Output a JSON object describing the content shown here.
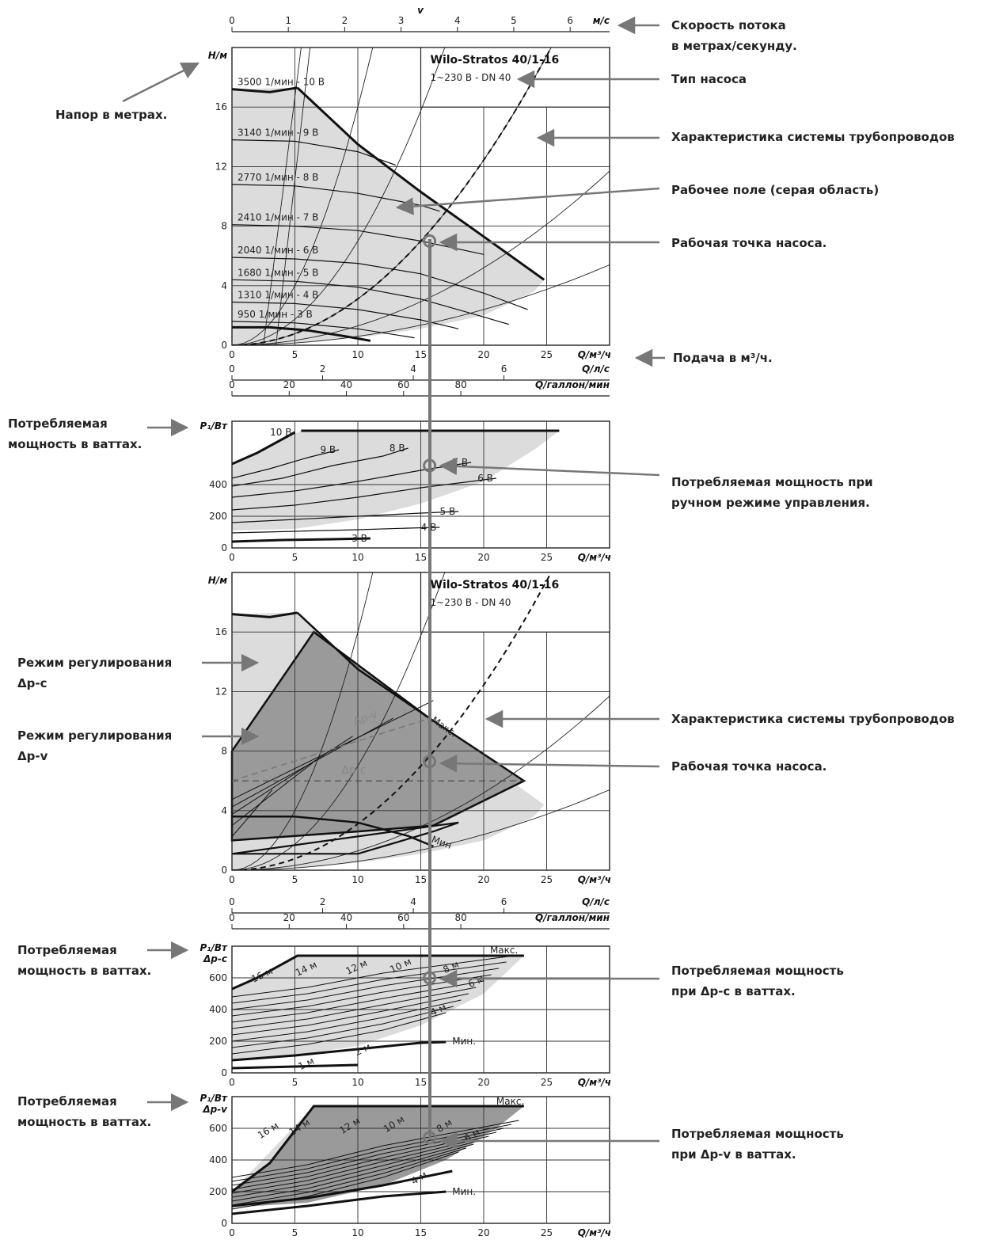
{
  "chart_data": [
    {
      "id": "h1",
      "type": "line",
      "title": "Wilo-Stratos 40/1-16",
      "subtitle": "1~230 В - DN 40",
      "ylabel": "H/м",
      "xlabel": "Q/м³/ч",
      "xlim": [
        0,
        30
      ],
      "ylim": [
        0,
        20
      ],
      "xticks": [
        0,
        5,
        10,
        15,
        20,
        25
      ],
      "yticks": [
        0,
        4,
        8,
        12,
        16
      ],
      "top_axis": {
        "label": "v",
        "unit": "м/с",
        "ticks": [
          "0",
          "1",
          "2",
          "3",
          "4",
          "5",
          "6"
        ],
        "max": 6.7
      },
      "series": [
        {
          "name": "3500 1/мин - 10 В",
          "x": [
            0,
            3,
            5.2
          ],
          "y": [
            17.2,
            17.0,
            17.3
          ]
        },
        {
          "name": "3140 1/мин - 9 В",
          "x": [
            0,
            5,
            10,
            13
          ],
          "y": [
            13.8,
            13.7,
            13.0,
            12.1
          ]
        },
        {
          "name": "2770 1/мин - 8 В",
          "x": [
            0,
            5,
            10,
            15,
            16.5
          ],
          "y": [
            10.8,
            10.7,
            10.2,
            9.4,
            9.0
          ]
        },
        {
          "name": "2410 1/мин - 7 В",
          "x": [
            0,
            5,
            10,
            15,
            20
          ],
          "y": [
            8.1,
            8.0,
            7.7,
            7.0,
            6.1
          ]
        },
        {
          "name": "2040 1/мин - 6 В",
          "x": [
            0,
            5,
            10,
            15,
            20,
            23.5
          ],
          "y": [
            5.9,
            5.8,
            5.5,
            4.8,
            3.5,
            2.4
          ]
        },
        {
          "name": "1680 1/мин - 5 В",
          "x": [
            0,
            5,
            10,
            15,
            20,
            22
          ],
          "y": [
            4.4,
            4.3,
            3.9,
            3.1,
            1.9,
            1.4
          ]
        },
        {
          "name": "1310 1/мин - 4 В",
          "x": [
            0,
            5,
            10,
            15,
            18
          ],
          "y": [
            2.9,
            2.8,
            2.4,
            1.7,
            1.1
          ]
        },
        {
          "name": "950 1/мин - 3 В",
          "x": [
            0,
            5,
            10,
            14.5
          ],
          "y": [
            1.6,
            1.5,
            1.1,
            0.5
          ]
        },
        {
          "name": "min",
          "x": [
            0,
            3,
            6,
            9,
            11
          ],
          "y": [
            1.2,
            1.2,
            1.0,
            0.6,
            0.3
          ]
        }
      ],
      "envelope": {
        "x": [
          5.2,
          10,
          15,
          20,
          24.8
        ],
        "y": [
          17.3,
          13.5,
          10.3,
          7.3,
          4.4
        ]
      },
      "system_curve": {
        "k": 0.0311
      },
      "operating_point": {
        "x": 15.7,
        "y": 7.0
      }
    },
    {
      "id": "p1",
      "type": "line",
      "ylabel": "P₁/Вт",
      "xlabel": "Q/м³/ч",
      "xlim": [
        0,
        30
      ],
      "ylim": [
        0,
        800
      ],
      "xticks": [
        0,
        5,
        10,
        15,
        20,
        25
      ],
      "yticks": [
        0,
        200,
        400
      ],
      "top_axes": [
        {
          "unit": "Q/л/с",
          "ticks": [
            "0",
            "2",
            "4",
            "6"
          ],
          "max": 8.33
        },
        {
          "unit": "Q/галлон/мин",
          "ticks": [
            "0",
            "20",
            "40",
            "60",
            "80"
          ],
          "max": 132
        }
      ],
      "series": [
        {
          "name": "10 В",
          "x": [
            0,
            2,
            5
          ],
          "y": [
            530,
            600,
            730
          ]
        },
        {
          "name": "9 В",
          "x": [
            0,
            3,
            6,
            8.5
          ],
          "y": [
            440,
            500,
            570,
            620
          ]
        },
        {
          "name": "8 В",
          "x": [
            0,
            4,
            8,
            12,
            14
          ],
          "y": [
            390,
            440,
            520,
            580,
            630
          ]
        },
        {
          "name": "7 В",
          "x": [
            0,
            5,
            10,
            15,
            19
          ],
          "y": [
            320,
            360,
            420,
            490,
            540
          ]
        },
        {
          "name": "6 В",
          "x": [
            0,
            5,
            10,
            15,
            21
          ],
          "y": [
            240,
            270,
            320,
            380,
            440
          ]
        },
        {
          "name": "5 В",
          "x": [
            0,
            5,
            10,
            15,
            18
          ],
          "y": [
            160,
            180,
            200,
            220,
            230
          ]
        },
        {
          "name": "4 В",
          "x": [
            0,
            5,
            10,
            14,
            16.5
          ],
          "y": [
            95,
            105,
            115,
            125,
            130
          ]
        },
        {
          "name": "3 В",
          "x": [
            0,
            4,
            8,
            11
          ],
          "y": [
            40,
            50,
            55,
            60
          ]
        }
      ],
      "max_line": {
        "x": [
          5.5,
          26
        ],
        "y": [
          740,
          740
        ]
      },
      "operating_point": {
        "x": 15.7,
        "y": 520
      }
    },
    {
      "id": "h2",
      "type": "line",
      "title": "Wilo-Stratos 40/1-16",
      "subtitle": "1~230 В - DN 40",
      "ylabel": "H/м",
      "xlabel": "Q/м³/ч",
      "xlim": [
        0,
        30
      ],
      "ylim": [
        0,
        20
      ],
      "xticks": [
        0,
        5,
        10,
        15,
        20,
        25
      ],
      "yticks": [
        0,
        4,
        8,
        12,
        16
      ],
      "labels": {
        "max": "Макс.",
        "min": "Мин",
        "dpv": "Δp-v",
        "dpc": "Δp-c"
      },
      "dpc_region": {
        "x": [
          0,
          6.5,
          10,
          15.7,
          23.2,
          16,
          10,
          0
        ],
        "y": [
          8,
          16,
          13.8,
          10.2,
          6,
          3,
          2.6,
          2
        ]
      },
      "dpv_line": {
        "x": [
          0,
          15.7
        ],
        "y": [
          6,
          10.2
        ]
      },
      "dpc_line": {
        "x": [
          0,
          23.2
        ],
        "y": [
          6,
          6
        ]
      },
      "system_curve": {
        "k": 0.0311
      },
      "operating_point": {
        "x": 15.7,
        "y": 7.3
      }
    },
    {
      "id": "p2",
      "type": "line",
      "ylabel": "P₁/Вт",
      "ylabel2": "Δp-c",
      "xlabel": "Q/м³/ч",
      "xlim": [
        0,
        30
      ],
      "ylim": [
        0,
        800
      ],
      "xticks": [
        0,
        5,
        10,
        15,
        20,
        25
      ],
      "yticks": [
        0,
        200,
        400,
        600
      ],
      "top_axes": [
        {
          "unit": "Q/л/с",
          "ticks": [
            "0",
            "2",
            "4",
            "6"
          ],
          "max": 8.33
        },
        {
          "unit": "Q/галлон/мин",
          "ticks": [
            "0",
            "20",
            "40",
            "60",
            "80"
          ],
          "max": 132
        }
      ],
      "labels": {
        "max": "Макс.",
        "min": "Мин."
      },
      "curve_labels": [
        "16 м",
        "14 м",
        "12 м",
        "10 м",
        "8 м",
        "6 м",
        "4 м",
        "2 м",
        "1 м"
      ],
      "operating_point": {
        "x": 15.7,
        "y": 600
      }
    },
    {
      "id": "p3",
      "type": "line",
      "ylabel": "P₁/Вт",
      "ylabel2": "Δp-v",
      "xlabel": "Q/м³/ч",
      "xlim": [
        0,
        30
      ],
      "ylim": [
        0,
        800
      ],
      "xticks": [
        0,
        5,
        10,
        15,
        20,
        25
      ],
      "yticks": [
        0,
        200,
        400,
        600
      ],
      "labels": {
        "max": "Макс.",
        "min": "Мин."
      },
      "curve_labels": [
        "16 м",
        "14 м",
        "12 м",
        "10 м",
        "8 м",
        "6 м",
        "4 м"
      ],
      "operating_point": {
        "x": 15.7,
        "y": 540
      }
    }
  ],
  "annotations": {
    "velocity_line1": "Скорость потока",
    "velocity_line2": "в метрах/секунду.",
    "head": "Напор в метрах.",
    "pump_type": "Тип насоса",
    "system_curve_1": "Характеристика системы трубопроводов",
    "operating_field": "Рабочее поле (серая область)",
    "operating_point_1": "Рабочая точка насоса.",
    "flow": "Подача в м³/ч.",
    "power_1_line1": "Потребляемая",
    "power_1_line2": "мощность в ваттах.",
    "manual_line1": "Потребляемая мощность при",
    "manual_line2": "ручном режиме управления.",
    "dpc_mode_line1": "Режим регулирования",
    "dpc_mode_line2": "Δp-c",
    "dpv_mode_line1": "Режим регулирования",
    "dpv_mode_line2": "Δp-v",
    "system_curve_2": "Характеристика системы трубопроводов",
    "operating_point_2": "Рабочая точка насоса.",
    "power_2_line1": "Потребляемая",
    "power_2_line2": "мощность в ваттах.",
    "dpc_power_line1": "Потребляемая мощность",
    "dpc_power_line2": "при Δp-c в ваттах.",
    "power_3_line1": "Потребляемая",
    "power_3_line2": "мощность в ваттах.",
    "dpv_power_line1": "Потребляемая мощность",
    "dpv_power_line2": "при Δp-v в ваттах."
  },
  "colors": {
    "grid": "#333333",
    "light_fill": "#dcdcdc",
    "dark_fill": "#9a9a9a",
    "arrow": "#777777",
    "marker": "#777777"
  }
}
